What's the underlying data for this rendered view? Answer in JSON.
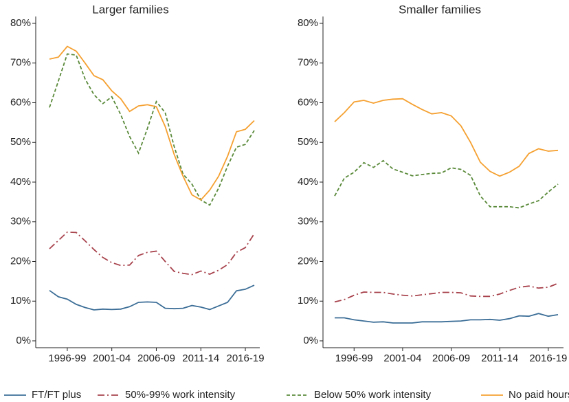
{
  "chart_data": [
    {
      "type": "line",
      "title": "Larger families",
      "categories": [
        null,
        null,
        "1996-99",
        null,
        null,
        null,
        null,
        "2001-04",
        null,
        null,
        null,
        null,
        "2006-09",
        null,
        null,
        null,
        null,
        "2011-14",
        null,
        null,
        null,
        null,
        "2016-19",
        null
      ],
      "ylim": [
        0,
        80
      ],
      "yticks": [
        {
          "value": 0,
          "label": "0%"
        },
        {
          "value": 10,
          "label": "10%"
        },
        {
          "value": 20,
          "label": "20%"
        },
        {
          "value": 30,
          "label": "30%"
        },
        {
          "value": 40,
          "label": "40%"
        },
        {
          "value": 50,
          "label": "50%"
        },
        {
          "value": 60,
          "label": "60%"
        },
        {
          "value": 70,
          "label": "70%"
        },
        {
          "value": 80,
          "label": "80%"
        }
      ],
      "series": [
        {
          "name": "FT/FT plus",
          "color": "#3c6e97",
          "values": [
            12.7,
            11.1,
            10.5,
            9.2,
            8.4,
            7.8,
            8,
            7.9,
            8,
            8.6,
            9.7,
            9.8,
            9.7,
            8.2,
            8.1,
            8.2,
            8.9,
            8.5,
            7.9,
            8.8,
            9.7,
            12.6,
            13,
            14
          ]
        },
        {
          "name": "50%-99% work intensity",
          "color": "#a8434d",
          "values": [
            23.2,
            25.3,
            27.4,
            27.3,
            25.2,
            23,
            21,
            19.7,
            19,
            19.1,
            21.5,
            22.3,
            22.6,
            20,
            17.5,
            17,
            16.7,
            17.6,
            16.8,
            17.8,
            19.2,
            22.3,
            23.5,
            27
          ]
        },
        {
          "name": "Below 50% work intensity",
          "color": "#5a8a3a",
          "values": [
            58.8,
            65.5,
            72.3,
            72,
            66,
            62,
            59.8,
            61.5,
            57,
            51.5,
            47.3,
            53.5,
            60.3,
            57.5,
            49,
            42,
            39.5,
            35.5,
            34.2,
            38.5,
            44,
            48.8,
            49.5,
            53
          ]
        },
        {
          "name": "No paid hours",
          "color": "#f5a030",
          "values": [
            71,
            71.5,
            74.2,
            73,
            70,
            66.8,
            65.8,
            63,
            61,
            57.8,
            59.2,
            59.5,
            59,
            54,
            47,
            41.5,
            36.8,
            35.5,
            38,
            41.5,
            46.5,
            52.7,
            53.3,
            55.5
          ]
        }
      ]
    },
    {
      "type": "line",
      "title": "Smaller families",
      "categories": [
        null,
        null,
        "1996-99",
        null,
        null,
        null,
        null,
        "2001-04",
        null,
        null,
        null,
        null,
        "2006-09",
        null,
        null,
        null,
        null,
        "2011-14",
        null,
        null,
        null,
        null,
        "2016-19",
        null
      ],
      "ylim": [
        0,
        80
      ],
      "yticks": [
        {
          "value": 0,
          "label": "0%"
        },
        {
          "value": 10,
          "label": "10%"
        },
        {
          "value": 20,
          "label": "20%"
        },
        {
          "value": 30,
          "label": "30%"
        },
        {
          "value": 40,
          "label": "40%"
        },
        {
          "value": 50,
          "label": "50%"
        },
        {
          "value": 60,
          "label": "60%"
        },
        {
          "value": 70,
          "label": "70%"
        },
        {
          "value": 80,
          "label": "80%"
        }
      ],
      "series": [
        {
          "name": "FT/FT plus",
          "color": "#3c6e97",
          "values": [
            5.8,
            5.8,
            5.3,
            5,
            4.7,
            4.8,
            4.5,
            4.5,
            4.5,
            4.8,
            4.8,
            4.8,
            4.9,
            5,
            5.3,
            5.3,
            5.4,
            5.2,
            5.6,
            6.3,
            6.2,
            6.9,
            6.2,
            6.6
          ]
        },
        {
          "name": "50%-99% work intensity",
          "color": "#a8434d",
          "values": [
            9.8,
            10.4,
            11.5,
            12.3,
            12.2,
            12.2,
            11.8,
            11.5,
            11.3,
            11.6,
            11.9,
            12.2,
            12.2,
            12.1,
            11.3,
            11.2,
            11.2,
            11.8,
            12.7,
            13.5,
            13.8,
            13.3,
            13.5,
            14.5
          ]
        },
        {
          "name": "Below 50% work intensity",
          "color": "#5a8a3a",
          "values": [
            36.5,
            41,
            42.5,
            44.9,
            43.7,
            45.4,
            43.3,
            42.5,
            41.6,
            41.9,
            42.2,
            42.3,
            43.6,
            43.2,
            41.7,
            36.5,
            33.8,
            33.8,
            33.8,
            33.5,
            34.5,
            35.3,
            37.5,
            39.5
          ]
        },
        {
          "name": "No paid hours",
          "color": "#f5a030",
          "values": [
            55.2,
            57.5,
            60.2,
            60.6,
            59.9,
            60.6,
            60.9,
            61,
            59.6,
            58.3,
            57.2,
            57.5,
            56.7,
            54.2,
            50,
            45,
            42.7,
            41.5,
            42.5,
            44,
            47.2,
            48.4,
            47.8,
            48
          ]
        }
      ]
    }
  ]
}
